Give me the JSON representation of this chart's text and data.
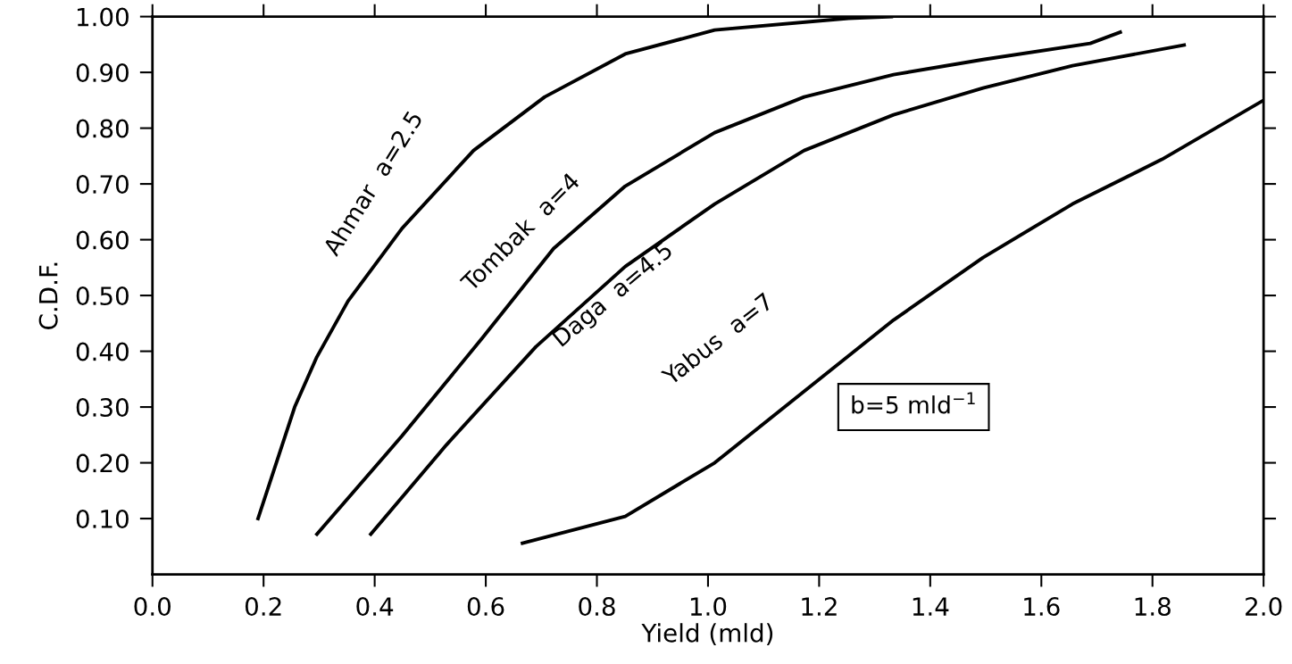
{
  "chart_data": {
    "type": "line",
    "xlabel": "Yield (mld)",
    "ylabel": "C.D.F.",
    "xlim": [
      0.0,
      2.0
    ],
    "ylim": [
      0.0,
      1.0
    ],
    "xticks": [
      {
        "value": 0,
        "label": "0.0"
      },
      0.2,
      0.4,
      0.6,
      0.8,
      {
        "value": 1,
        "label": "1.0"
      },
      1.2,
      1.4,
      1.6,
      1.8,
      {
        "value": 2,
        "label": "2.0"
      }
    ],
    "yticks": [
      {
        "value": 0.1,
        "label": "0.10"
      },
      {
        "value": 0.2,
        "label": "0.20"
      },
      {
        "value": 0.3,
        "label": "0.30"
      },
      {
        "value": 0.4,
        "label": "0.40"
      },
      {
        "value": 0.5,
        "label": "0.50"
      },
      {
        "value": 0.6,
        "label": "0.60"
      },
      {
        "value": 0.7,
        "label": "0.70"
      },
      {
        "value": 0.8,
        "label": "0.80"
      },
      {
        "value": 0.9,
        "label": "0.90"
      },
      {
        "value": 1.0,
        "label": "1.00"
      }
    ],
    "grid": false,
    "legend": false,
    "marker": "none",
    "line_style": "solid",
    "series": [
      {
        "color": "#000000",
        "x": [
          0.19,
          0.256,
          0.296,
          0.352,
          0.449,
          0.578,
          0.706,
          0.851,
          1.012,
          1.253,
          1.33
        ],
        "values": [
          0.1,
          0.3,
          0.39,
          0.49,
          0.62,
          0.76,
          0.856,
          0.933,
          0.976,
          0.997,
          1.0
        ]
      },
      {
        "color": "#000000",
        "x": [
          0.296,
          0.449,
          0.594,
          0.722,
          0.851,
          1.012,
          1.173,
          1.334,
          1.495,
          1.688,
          1.742
        ],
        "values": [
          0.072,
          0.248,
          0.424,
          0.584,
          0.696,
          0.792,
          0.856,
          0.896,
          0.923,
          0.952,
          0.972
        ]
      },
      {
        "color": "#000000",
        "x": [
          0.393,
          0.529,
          0.69,
          0.851,
          1.012,
          1.173,
          1.334,
          1.495,
          1.656,
          1.857
        ],
        "values": [
          0.072,
          0.232,
          0.408,
          0.552,
          0.664,
          0.76,
          0.824,
          0.872,
          0.912,
          0.949
        ]
      },
      {
        "color": "#000000",
        "x": [
          0.666,
          0.851,
          1.012,
          1.173,
          1.334,
          1.495,
          1.656,
          1.817,
          2.0
        ],
        "values": [
          0.056,
          0.104,
          0.2,
          0.328,
          0.456,
          0.568,
          0.664,
          0.744,
          0.85
        ]
      }
    ],
    "annotations": [
      "Ahmar  a=2.5",
      "Tombak  a=4",
      "Daga  a=4.5",
      "Yabus  a=7",
      "b=5 mld$^{−1}$"
    ]
  }
}
